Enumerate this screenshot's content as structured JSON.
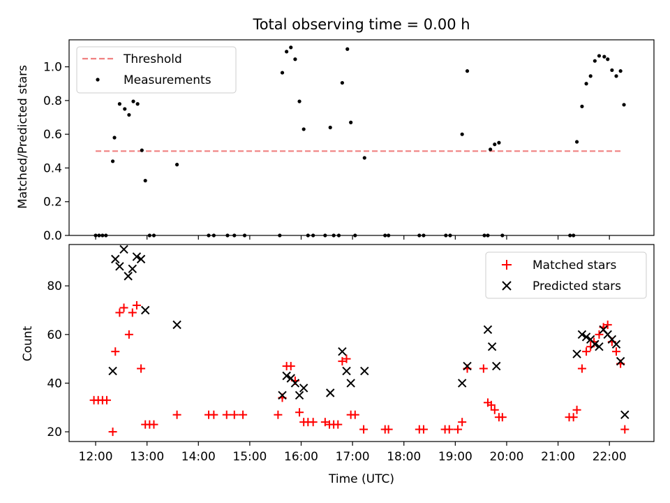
{
  "chart_data": [
    {
      "type": "scatter",
      "title": "Total observing time = 0.00 h",
      "xlabel": "",
      "ylabel": "Matched/Predicted stars",
      "xlim": [
        "11:29",
        "22:52"
      ],
      "ylim": [
        0.0,
        1.16
      ],
      "yticks": [
        "0.0",
        "0.2",
        "0.4",
        "0.6",
        "0.8",
        "1.0"
      ],
      "legend": {
        "position": "top-left",
        "entries": [
          "Threshold",
          "Measurements"
        ]
      },
      "threshold": {
        "name": "Threshold",
        "value": 0.5,
        "x_range": [
          "12:00",
          "22:15"
        ],
        "color": "#f08080",
        "style": "dashed"
      },
      "series": [
        {
          "name": "Measurements",
          "color": "#000000",
          "marker": "dot",
          "points": [
            [
              "12:00",
              0
            ],
            [
              "12:04",
              0
            ],
            [
              "12:08",
              0
            ],
            [
              "12:12",
              0
            ],
            [
              "12:20",
              0.44
            ],
            [
              "12:22",
              0.58
            ],
            [
              "12:28",
              0.78
            ],
            [
              "12:34",
              0.75
            ],
            [
              "12:39",
              0.715
            ],
            [
              "12:44",
              0.795
            ],
            [
              "12:49",
              0.78
            ],
            [
              "12:54",
              0.505
            ],
            [
              "12:58",
              0.325
            ],
            [
              "13:03",
              0
            ],
            [
              "13:08",
              0
            ],
            [
              "13:35",
              0.42
            ],
            [
              "14:12",
              0
            ],
            [
              "14:18",
              0
            ],
            [
              "14:34",
              0
            ],
            [
              "14:42",
              0
            ],
            [
              "14:54",
              0
            ],
            [
              "15:35",
              0
            ],
            [
              "15:38",
              0.965
            ],
            [
              "15:43",
              1.09
            ],
            [
              "15:48",
              1.115
            ],
            [
              "15:53",
              1.045
            ],
            [
              "15:58",
              0.795
            ],
            [
              "16:03",
              0.63
            ],
            [
              "16:08",
              0
            ],
            [
              "16:14",
              0
            ],
            [
              "16:28",
              0
            ],
            [
              "16:34",
              0.64
            ],
            [
              "16:38",
              0
            ],
            [
              "16:44",
              0
            ],
            [
              "16:48",
              0.905
            ],
            [
              "16:54",
              1.105
            ],
            [
              "16:58",
              0.67
            ],
            [
              "17:03",
              0
            ],
            [
              "17:14",
              0.46
            ],
            [
              "17:38",
              0
            ],
            [
              "17:42",
              0
            ],
            [
              "18:18",
              0
            ],
            [
              "18:23",
              0
            ],
            [
              "18:49",
              0
            ],
            [
              "18:54",
              0
            ],
            [
              "19:08",
              0.6
            ],
            [
              "19:14",
              0.975
            ],
            [
              "19:34",
              0
            ],
            [
              "19:38",
              0
            ],
            [
              "19:41",
              0.51
            ],
            [
              "19:46",
              0.54
            ],
            [
              "19:51",
              0.55
            ],
            [
              "19:55",
              0
            ],
            [
              "21:14",
              0
            ],
            [
              "21:18",
              0
            ],
            [
              "21:22",
              0.555
            ],
            [
              "21:28",
              0.765
            ],
            [
              "21:33",
              0.9
            ],
            [
              "21:38",
              0.945
            ],
            [
              "21:43",
              1.035
            ],
            [
              "21:48",
              1.065
            ],
            [
              "21:54",
              1.06
            ],
            [
              "21:58",
              1.045
            ],
            [
              "22:03",
              0.98
            ],
            [
              "22:08",
              0.945
            ],
            [
              "22:13",
              0.975
            ],
            [
              "22:17",
              0.775
            ]
          ]
        }
      ]
    },
    {
      "type": "scatter",
      "title": "",
      "xlabel": "Time (UTC)",
      "ylabel": "Count",
      "xlim": [
        "11:29",
        "22:52"
      ],
      "ylim": [
        16,
        97
      ],
      "yticks": [
        "20",
        "40",
        "60",
        "80"
      ],
      "xticks": [
        "12:00",
        "13:00",
        "14:00",
        "15:00",
        "16:00",
        "17:00",
        "18:00",
        "19:00",
        "20:00",
        "21:00",
        "22:00"
      ],
      "legend": {
        "position": "top-right",
        "entries": [
          "Matched stars",
          "Predicted stars"
        ]
      },
      "series": [
        {
          "name": "Matched stars",
          "color": "#ff0000",
          "marker": "plus",
          "points": [
            [
              "11:58",
              33
            ],
            [
              "12:03",
              33
            ],
            [
              "12:08",
              33
            ],
            [
              "12:13",
              33
            ],
            [
              "12:20",
              20
            ],
            [
              "12:23",
              53
            ],
            [
              "12:28",
              69
            ],
            [
              "12:33",
              71
            ],
            [
              "12:39",
              60
            ],
            [
              "12:43",
              69
            ],
            [
              "12:48",
              72
            ],
            [
              "12:53",
              46
            ],
            [
              "12:58",
              23
            ],
            [
              "13:03",
              23
            ],
            [
              "13:08",
              23
            ],
            [
              "13:35",
              27
            ],
            [
              "14:12",
              27
            ],
            [
              "14:18",
              27
            ],
            [
              "14:33",
              27
            ],
            [
              "14:42",
              27
            ],
            [
              "14:52",
              27
            ],
            [
              "15:33",
              27
            ],
            [
              "15:38",
              34
            ],
            [
              "15:43",
              47
            ],
            [
              "15:48",
              47
            ],
            [
              "15:53",
              41
            ],
            [
              "15:58",
              28
            ],
            [
              "16:03",
              24
            ],
            [
              "16:08",
              24
            ],
            [
              "16:14",
              24
            ],
            [
              "16:28",
              24
            ],
            [
              "16:33",
              23
            ],
            [
              "16:38",
              23
            ],
            [
              "16:43",
              23
            ],
            [
              "16:48",
              49
            ],
            [
              "16:53",
              50
            ],
            [
              "16:58",
              27
            ],
            [
              "17:03",
              27
            ],
            [
              "17:13",
              21
            ],
            [
              "17:38",
              21
            ],
            [
              "17:42",
              21
            ],
            [
              "18:18",
              21
            ],
            [
              "18:23",
              21
            ],
            [
              "18:48",
              21
            ],
            [
              "18:53",
              21
            ],
            [
              "19:03",
              21
            ],
            [
              "19:08",
              24
            ],
            [
              "19:14",
              46
            ],
            [
              "19:33",
              46
            ],
            [
              "19:38",
              32
            ],
            [
              "19:42",
              31
            ],
            [
              "19:46",
              29
            ],
            [
              "19:51",
              26
            ],
            [
              "19:55",
              26
            ],
            [
              "21:13",
              26
            ],
            [
              "21:18",
              26
            ],
            [
              "21:22",
              29
            ],
            [
              "21:28",
              46
            ],
            [
              "21:33",
              53
            ],
            [
              "21:38",
              55
            ],
            [
              "21:42",
              57
            ],
            [
              "21:48",
              60
            ],
            [
              "21:53",
              63
            ],
            [
              "21:58",
              64
            ],
            [
              "22:03",
              57
            ],
            [
              "22:08",
              53
            ],
            [
              "22:13",
              48
            ],
            [
              "22:18",
              21
            ]
          ]
        },
        {
          "name": "Predicted stars",
          "color": "#000000",
          "marker": "x",
          "points": [
            [
              "12:20",
              45
            ],
            [
              "12:23",
              91
            ],
            [
              "12:28",
              88
            ],
            [
              "12:33",
              95
            ],
            [
              "12:38",
              84
            ],
            [
              "12:43",
              87
            ],
            [
              "12:48",
              92
            ],
            [
              "12:53",
              91
            ],
            [
              "12:58",
              70
            ],
            [
              "13:35",
              64
            ],
            [
              "15:38",
              35
            ],
            [
              "15:43",
              43
            ],
            [
              "15:48",
              42
            ],
            [
              "15:53",
              40
            ],
            [
              "15:58",
              35
            ],
            [
              "16:03",
              38
            ],
            [
              "16:34",
              36
            ],
            [
              "16:48",
              53
            ],
            [
              "16:53",
              45
            ],
            [
              "16:58",
              40
            ],
            [
              "17:14",
              45
            ],
            [
              "19:08",
              40
            ],
            [
              "19:14",
              47
            ],
            [
              "19:38",
              62
            ],
            [
              "19:43",
              55
            ],
            [
              "19:48",
              47
            ],
            [
              "21:22",
              52
            ],
            [
              "21:28",
              60
            ],
            [
              "21:33",
              59
            ],
            [
              "21:38",
              58
            ],
            [
              "21:43",
              56
            ],
            [
              "21:48",
              55
            ],
            [
              "21:53",
              62
            ],
            [
              "21:58",
              60
            ],
            [
              "22:03",
              58
            ],
            [
              "22:08",
              56
            ],
            [
              "22:13",
              49
            ],
            [
              "22:18",
              27
            ]
          ]
        }
      ]
    }
  ]
}
